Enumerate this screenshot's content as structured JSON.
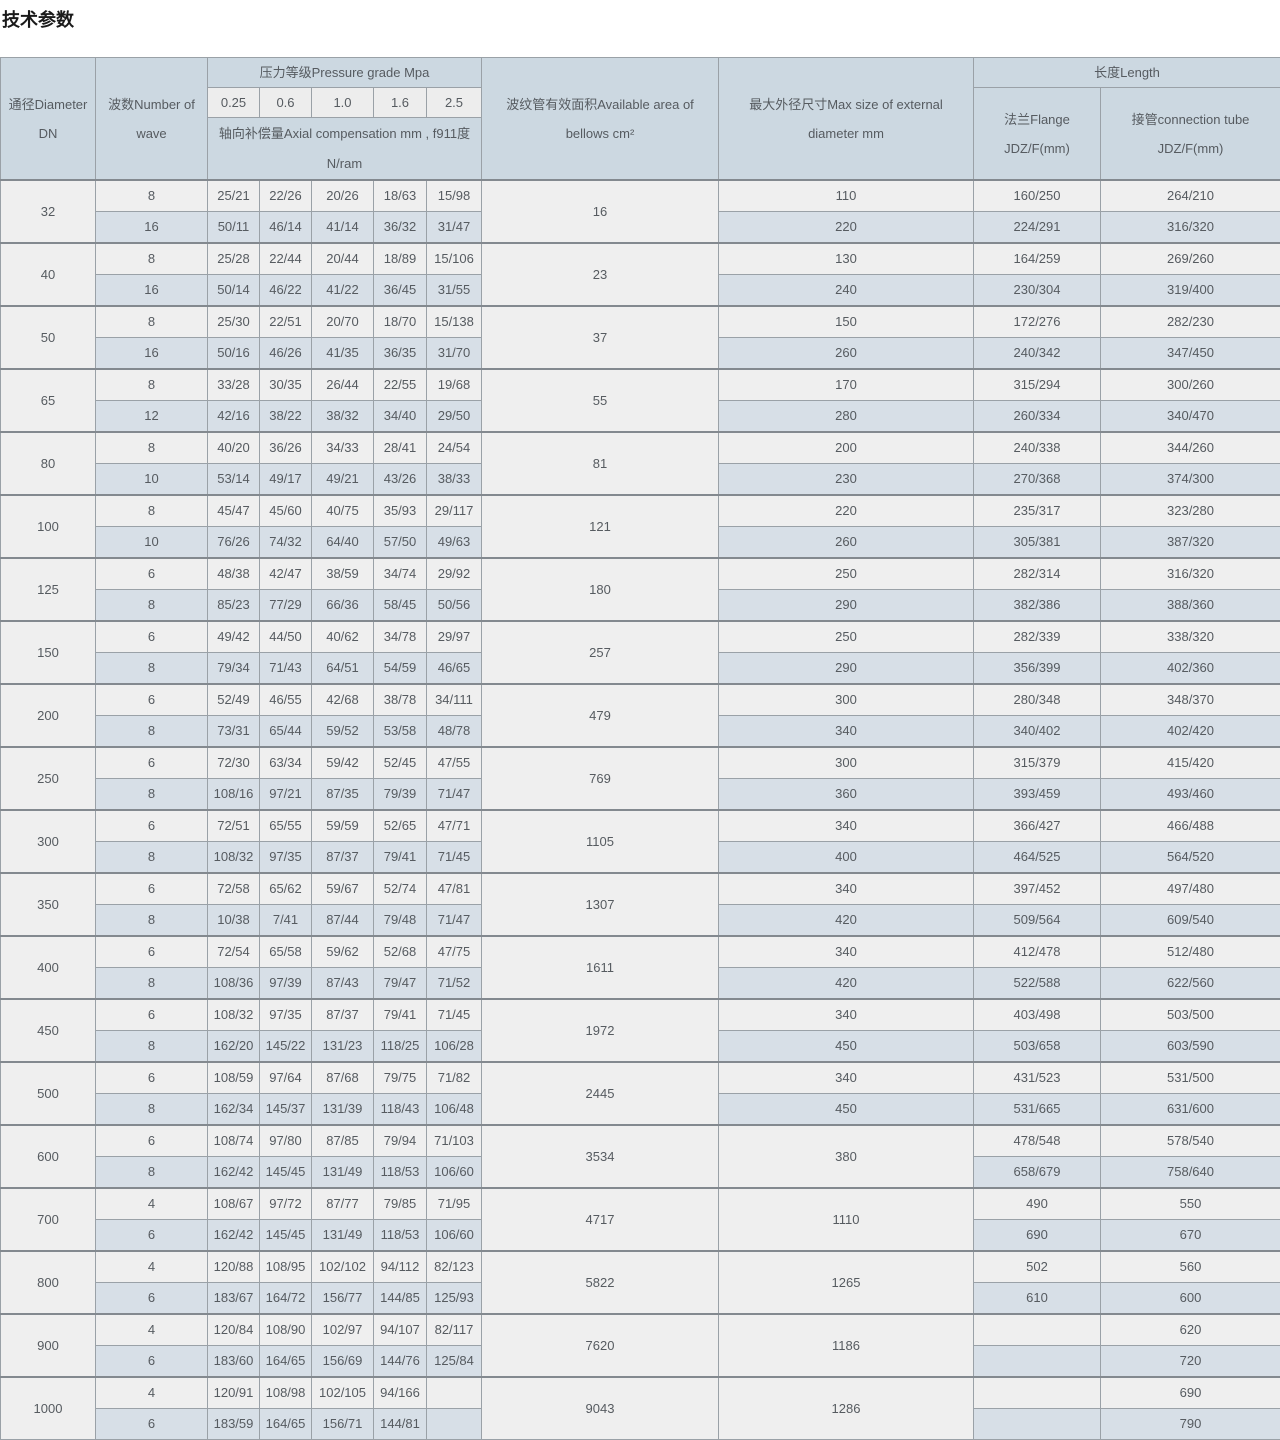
{
  "page": {
    "title": "技术参数"
  },
  "theme": {
    "header_bg": "#ccd8e1",
    "row_light_bg": "#efefef",
    "row_blue_bg": "#d7dfe7",
    "border_color": "#9aa1a7",
    "group_border_color": "#83898f",
    "text_color": "#565b60"
  },
  "table": {
    "header": {
      "diameter": "通径Diameter DN",
      "wave": "波数Number of wave",
      "pressure_group": "压力等级Pressure grade Mpa",
      "pressure_values": [
        "0.25",
        "0.6",
        "1.0",
        "1.6",
        "2.5"
      ],
      "axial": "轴向补偿量Axial compensation mm , f911度N/ram",
      "area": "波纹管有效面积Available area of bellows cm²",
      "max": "最大外径尺寸Max size of external diameter mm",
      "length_group": "长度Length",
      "flange": "法兰Flange JDZ/F(mm)",
      "tube": "接管connection tube JDZ/F(mm)"
    },
    "groups": [
      {
        "dn": "32",
        "area": "16",
        "span": false,
        "rows": [
          {
            "wave": "8",
            "p": [
              "25/21",
              "22/26",
              "20/26",
              "18/63",
              "15/98"
            ],
            "max": "110",
            "flange": "160/250",
            "tube": "264/210"
          },
          {
            "wave": "16",
            "p": [
              "50/11",
              "46/14",
              "41/14",
              "36/32",
              "31/47"
            ],
            "max": "220",
            "flange": "224/291",
            "tube": "316/320"
          }
        ]
      },
      {
        "dn": "40",
        "area": "23",
        "span": false,
        "rows": [
          {
            "wave": "8",
            "p": [
              "25/28",
              "22/44",
              "20/44",
              "18/89",
              "15/106"
            ],
            "max": "130",
            "flange": "164/259",
            "tube": "269/260"
          },
          {
            "wave": "16",
            "p": [
              "50/14",
              "46/22",
              "41/22",
              "36/45",
              "31/55"
            ],
            "max": "240",
            "flange": "230/304",
            "tube": "319/400"
          }
        ]
      },
      {
        "dn": "50",
        "area": "37",
        "span": false,
        "rows": [
          {
            "wave": "8",
            "p": [
              "25/30",
              "22/51",
              "20/70",
              "18/70",
              "15/138"
            ],
            "max": "150",
            "flange": "172/276",
            "tube": "282/230"
          },
          {
            "wave": "16",
            "p": [
              "50/16",
              "46/26",
              "41/35",
              "36/35",
              "31/70"
            ],
            "max": "260",
            "flange": "240/342",
            "tube": "347/450"
          }
        ]
      },
      {
        "dn": "65",
        "area": "55",
        "span": false,
        "rows": [
          {
            "wave": "8",
            "p": [
              "33/28",
              "30/35",
              "26/44",
              "22/55",
              "19/68"
            ],
            "max": "170",
            "flange": "315/294",
            "tube": "300/260"
          },
          {
            "wave": "12",
            "p": [
              "42/16",
              "38/22",
              "38/32",
              "34/40",
              "29/50"
            ],
            "max": "280",
            "flange": "260/334",
            "tube": "340/470"
          }
        ]
      },
      {
        "dn": "80",
        "area": "81",
        "span": false,
        "rows": [
          {
            "wave": "8",
            "p": [
              "40/20",
              "36/26",
              "34/33",
              "28/41",
              "24/54"
            ],
            "max": "200",
            "flange": "240/338",
            "tube": "344/260"
          },
          {
            "wave": "10",
            "p": [
              "53/14",
              "49/17",
              "49/21",
              "43/26",
              "38/33"
            ],
            "max": "230",
            "flange": "270/368",
            "tube": "374/300"
          }
        ]
      },
      {
        "dn": "100",
        "area": "121",
        "span": false,
        "rows": [
          {
            "wave": "8",
            "p": [
              "45/47",
              "45/60",
              "40/75",
              "35/93",
              "29/117"
            ],
            "max": "220",
            "flange": "235/317",
            "tube": "323/280"
          },
          {
            "wave": "10",
            "p": [
              "76/26",
              "74/32",
              "64/40",
              "57/50",
              "49/63"
            ],
            "max": "260",
            "flange": "305/381",
            "tube": "387/320"
          }
        ]
      },
      {
        "dn": "125",
        "area": "180",
        "span": false,
        "rows": [
          {
            "wave": "6",
            "p": [
              "48/38",
              "42/47",
              "38/59",
              "34/74",
              "29/92"
            ],
            "max": "250",
            "flange": "282/314",
            "tube": "316/320"
          },
          {
            "wave": "8",
            "p": [
              "85/23",
              "77/29",
              "66/36",
              "58/45",
              "50/56"
            ],
            "max": "290",
            "flange": "382/386",
            "tube": "388/360"
          }
        ]
      },
      {
        "dn": "150",
        "area": "257",
        "span": false,
        "rows": [
          {
            "wave": "6",
            "p": [
              "49/42",
              "44/50",
              "40/62",
              "34/78",
              "29/97"
            ],
            "max": "250",
            "flange": "282/339",
            "tube": "338/320"
          },
          {
            "wave": "8",
            "p": [
              "79/34",
              "71/43",
              "64/51",
              "54/59",
              "46/65"
            ],
            "max": "290",
            "flange": "356/399",
            "tube": "402/360"
          }
        ]
      },
      {
        "dn": "200",
        "area": "479",
        "span": false,
        "rows": [
          {
            "wave": "6",
            "p": [
              "52/49",
              "46/55",
              "42/68",
              "38/78",
              "34/111"
            ],
            "max": "300",
            "flange": "280/348",
            "tube": "348/370"
          },
          {
            "wave": "8",
            "p": [
              "73/31",
              "65/44",
              "59/52",
              "53/58",
              "48/78"
            ],
            "max": "340",
            "flange": "340/402",
            "tube": "402/420"
          }
        ]
      },
      {
        "dn": "250",
        "area": "769",
        "span": false,
        "rows": [
          {
            "wave": "6",
            "p": [
              "72/30",
              "63/34",
              "59/42",
              "52/45",
              "47/55"
            ],
            "max": "300",
            "flange": "315/379",
            "tube": "415/420"
          },
          {
            "wave": "8",
            "p": [
              "108/16",
              "97/21",
              "87/35",
              "79/39",
              "71/47"
            ],
            "max": "360",
            "flange": "393/459",
            "tube": "493/460"
          }
        ]
      },
      {
        "dn": "300",
        "area": "1105",
        "span": false,
        "rows": [
          {
            "wave": "6",
            "p": [
              "72/51",
              "65/55",
              "59/59",
              "52/65",
              "47/71"
            ],
            "max": "340",
            "flange": "366/427",
            "tube": "466/488"
          },
          {
            "wave": "8",
            "p": [
              "108/32",
              "97/35",
              "87/37",
              "79/41",
              "71/45"
            ],
            "max": "400",
            "flange": "464/525",
            "tube": "564/520"
          }
        ]
      },
      {
        "dn": "350",
        "area": "1307",
        "span": false,
        "rows": [
          {
            "wave": "6",
            "p": [
              "72/58",
              "65/62",
              "59/67",
              "52/74",
              "47/81"
            ],
            "max": "340",
            "flange": "397/452",
            "tube": "497/480"
          },
          {
            "wave": "8",
            "p": [
              "10/38",
              "7/41",
              "87/44",
              "79/48",
              "71/47"
            ],
            "max": "420",
            "flange": "509/564",
            "tube": "609/540"
          }
        ]
      },
      {
        "dn": "400",
        "area": "1611",
        "span": false,
        "rows": [
          {
            "wave": "6",
            "p": [
              "72/54",
              "65/58",
              "59/62",
              "52/68",
              "47/75"
            ],
            "max": "340",
            "flange": "412/478",
            "tube": "512/480"
          },
          {
            "wave": "8",
            "p": [
              "108/36",
              "97/39",
              "87/43",
              "79/47",
              "71/52"
            ],
            "max": "420",
            "flange": "522/588",
            "tube": "622/560"
          }
        ]
      },
      {
        "dn": "450",
        "area": "1972",
        "span": false,
        "rows": [
          {
            "wave": "6",
            "p": [
              "108/32",
              "97/35",
              "87/37",
              "79/41",
              "71/45"
            ],
            "max": "340",
            "flange": "403/498",
            "tube": "503/500"
          },
          {
            "wave": "8",
            "p": [
              "162/20",
              "145/22",
              "131/23",
              "118/25",
              "106/28"
            ],
            "max": "450",
            "flange": "503/658",
            "tube": "603/590"
          }
        ]
      },
      {
        "dn": "500",
        "area": "2445",
        "span": false,
        "rows": [
          {
            "wave": "6",
            "p": [
              "108/59",
              "97/64",
              "87/68",
              "79/75",
              "71/82"
            ],
            "max": "340",
            "flange": "431/523",
            "tube": "531/500"
          },
          {
            "wave": "8",
            "p": [
              "162/34",
              "145/37",
              "131/39",
              "118/43",
              "106/48"
            ],
            "max": "450",
            "flange": "531/665",
            "tube": "631/600"
          }
        ]
      },
      {
        "dn": "600",
        "area": "3534",
        "span": true,
        "max": "380",
        "rows": [
          {
            "wave": "6",
            "p": [
              "108/74",
              "97/80",
              "87/85",
              "79/94",
              "71/103"
            ],
            "flange": "478/548",
            "tube": "578/540"
          },
          {
            "wave": "8",
            "p": [
              "162/42",
              "145/45",
              "131/49",
              "118/53",
              "106/60"
            ],
            "flange": "658/679",
            "tube": "758/640"
          }
        ]
      },
      {
        "dn": "700",
        "area": "4717",
        "span": true,
        "max": "1110",
        "rows": [
          {
            "wave": "4",
            "p": [
              "108/67",
              "97/72",
              "87/77",
              "79/85",
              "71/95"
            ],
            "flange": "490",
            "tube": "550"
          },
          {
            "wave": "6",
            "p": [
              "162/42",
              "145/45",
              "131/49",
              "118/53",
              "106/60"
            ],
            "flange": "690",
            "tube": "670"
          }
        ]
      },
      {
        "dn": "800",
        "area": "5822",
        "span": true,
        "max": "1265",
        "rows": [
          {
            "wave": "4",
            "p": [
              "120/88",
              "108/95",
              "102/102",
              "94/112",
              "82/123"
            ],
            "flange": "502",
            "tube": "560"
          },
          {
            "wave": "6",
            "p": [
              "183/67",
              "164/72",
              "156/77",
              "144/85",
              "125/93"
            ],
            "flange": "610",
            "tube": "600"
          }
        ]
      },
      {
        "dn": "900",
        "area": "7620",
        "span": true,
        "max": "1186",
        "rows": [
          {
            "wave": "4",
            "p": [
              "120/84",
              "108/90",
              "102/97",
              "94/107",
              "82/117"
            ],
            "flange": "",
            "tube": "620"
          },
          {
            "wave": "6",
            "p": [
              "183/60",
              "164/65",
              "156/69",
              "144/76",
              "125/84"
            ],
            "flange": "",
            "tube": "720"
          }
        ]
      },
      {
        "dn": "1000",
        "area": "9043",
        "span": true,
        "max": "1286",
        "rows": [
          {
            "wave": "4",
            "p": [
              "120/91",
              "108/98",
              "102/105",
              "94/166",
              ""
            ],
            "flange": "",
            "tube": "690"
          },
          {
            "wave": "6",
            "p": [
              "183/59",
              "164/65",
              "156/71",
              "144/81",
              ""
            ],
            "flange": "",
            "tube": "790"
          }
        ]
      }
    ]
  }
}
